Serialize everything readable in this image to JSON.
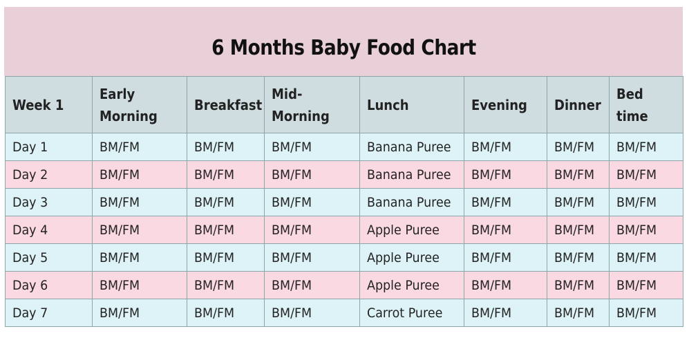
{
  "title": "6 Months Baby Food Chart",
  "colors": {
    "title_band": "#e8cfd8",
    "header_bg": "#cfdde0",
    "row_light_blue": "#ddf3f7",
    "row_pink": "#fbd9e3",
    "border": "#8aa6a6"
  },
  "table": {
    "headers": [
      "Week 1",
      "Early Morning",
      "Breakfast",
      "Mid-Morning",
      "Lunch",
      "Evening",
      "Dinner",
      "Bed time"
    ],
    "rows": [
      [
        "Day 1",
        "BM/FM",
        "BM/FM",
        "BM/FM",
        "Banana Puree",
        "BM/FM",
        "BM/FM",
        "BM/FM"
      ],
      [
        "Day 2",
        "BM/FM",
        "BM/FM",
        "BM/FM",
        "Banana Puree",
        "BM/FM",
        "BM/FM",
        "BM/FM"
      ],
      [
        "Day 3",
        "BM/FM",
        "BM/FM",
        "BM/FM",
        "Banana Puree",
        "BM/FM",
        "BM/FM",
        "BM/FM"
      ],
      [
        "Day 4",
        "BM/FM",
        "BM/FM",
        "BM/FM",
        "Apple Puree",
        "BM/FM",
        "BM/FM",
        "BM/FM"
      ],
      [
        "Day 5",
        "BM/FM",
        "BM/FM",
        "BM/FM",
        "Apple Puree",
        "BM/FM",
        "BM/FM",
        "BM/FM"
      ],
      [
        "Day 6",
        "BM/FM",
        "BM/FM",
        "BM/FM",
        "Apple Puree",
        "BM/FM",
        "BM/FM",
        "BM/FM"
      ],
      [
        "Day 7",
        "BM/FM",
        "BM/FM",
        "BM/FM",
        "Carrot Puree",
        "BM/FM",
        "BM/FM",
        "BM/FM"
      ]
    ]
  }
}
